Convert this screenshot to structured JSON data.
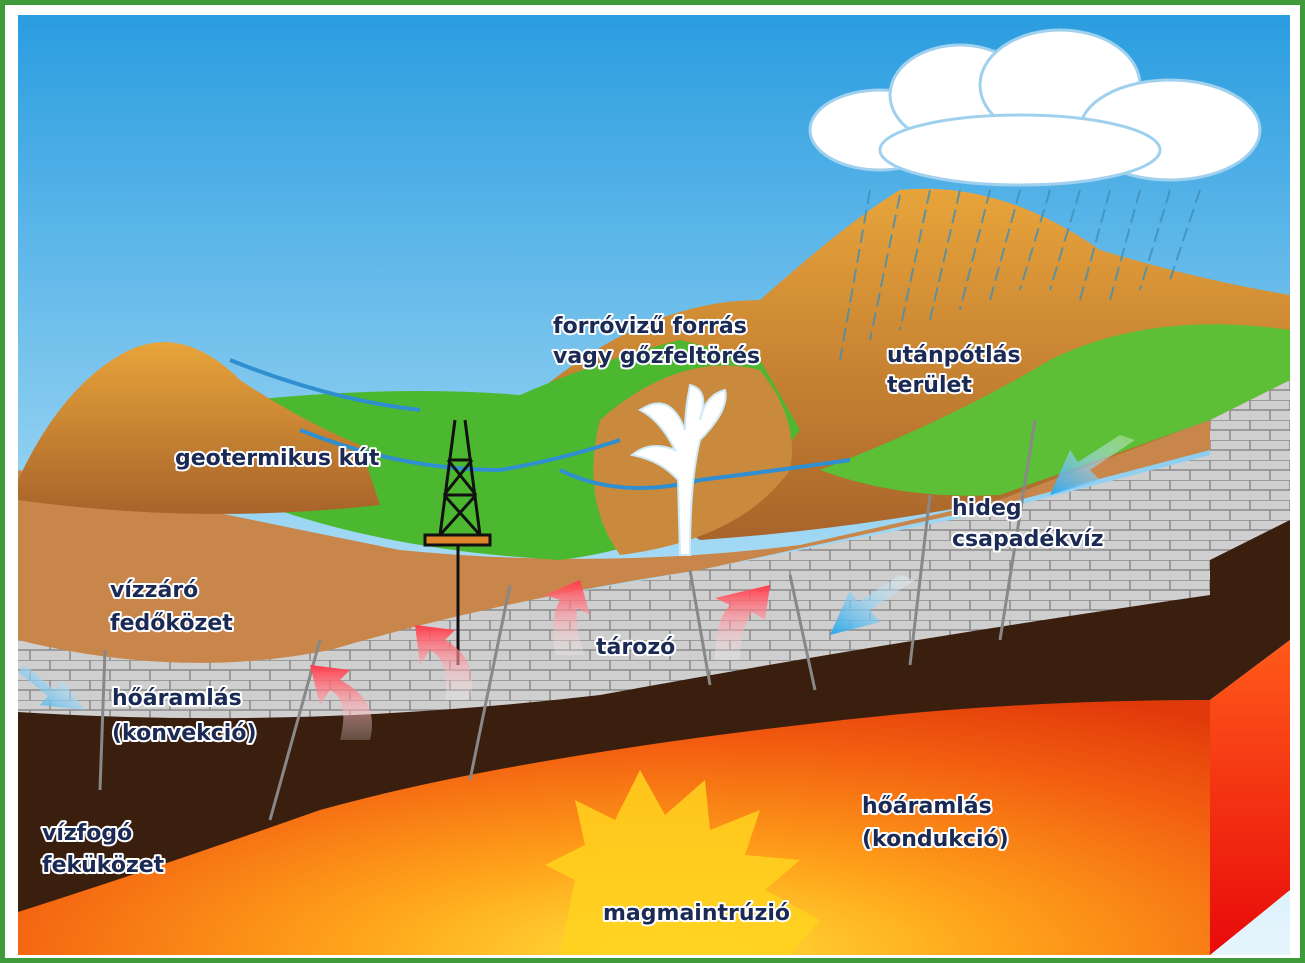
{
  "labels": [
    {
      "lines": [
        "forróvizű forrás",
        "vagy gőzfeltörés"
      ]
    },
    {
      "lines": [
        "utánpótlás",
        "terület"
      ]
    },
    {
      "lines": [
        "geotermikus kút"
      ]
    },
    {
      "lines": [
        "hideg",
        "csapadékvíz"
      ]
    },
    {
      "lines": [
        "vízzáró",
        "fedőközet"
      ]
    },
    {
      "lines": [
        "tározó"
      ]
    },
    {
      "lines": [
        "hőáramlás",
        "(konvekció)"
      ]
    },
    {
      "lines": [
        "vízfogó",
        "feküközet"
      ]
    },
    {
      "lines": [
        "hőáramlás",
        "(kondukció)"
      ]
    },
    {
      "lines": [
        "magmaintrúzió"
      ]
    }
  ]
}
